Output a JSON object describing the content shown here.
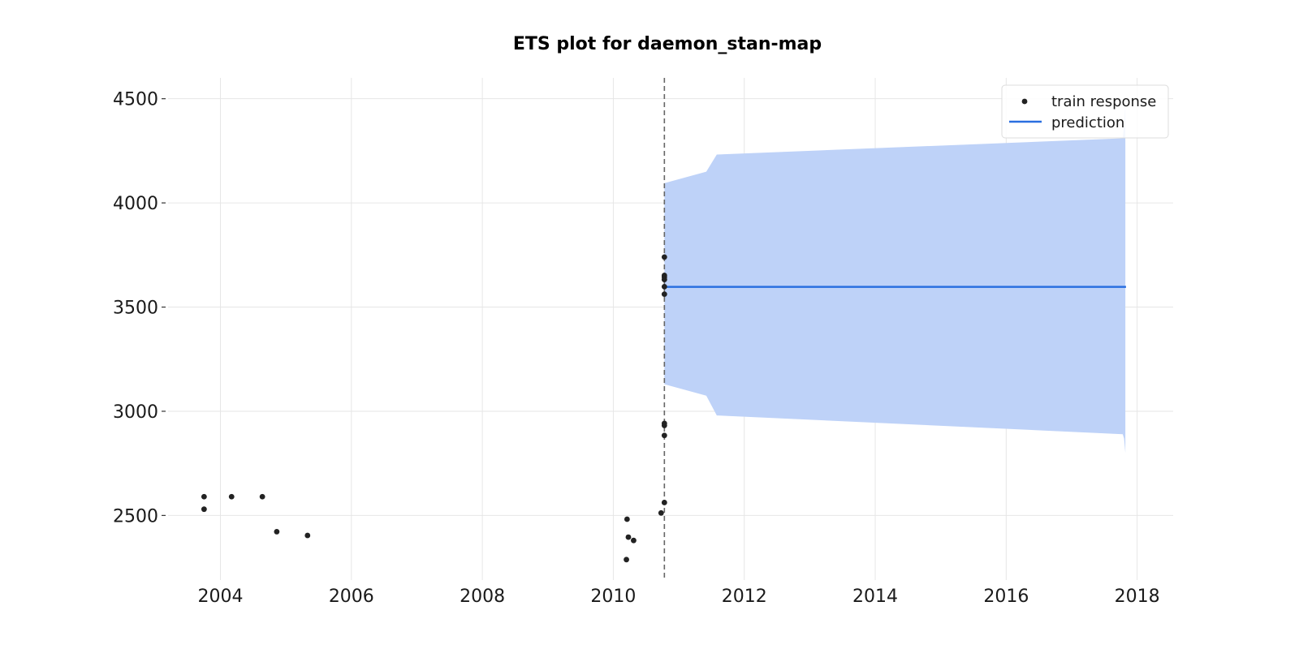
{
  "chart_data": {
    "type": "line",
    "title": "ETS plot for daemon_stan-map",
    "xlabel": "",
    "ylabel": "",
    "xlim": [
      2003.2,
      2018.55
    ],
    "ylim": [
      2190,
      4600
    ],
    "x_ticks": [
      2004,
      2006,
      2008,
      2010,
      2012,
      2014,
      2016,
      2018
    ],
    "x_tick_labels": [
      "2004",
      "2006",
      "2008",
      "2010",
      "2012",
      "2014",
      "2016",
      "2018"
    ],
    "y_ticks": [
      2500,
      3000,
      3500,
      4000,
      4500
    ],
    "y_tick_labels": [
      "2500",
      "3000",
      "3500",
      "4000",
      "4500"
    ],
    "grid": true,
    "legend_position": "top-right",
    "series": [
      {
        "name": "train response",
        "kind": "scatter",
        "color": "#222222",
        "points": [
          {
            "x": 2003.75,
            "y": 2590
          },
          {
            "x": 2003.75,
            "y": 2530
          },
          {
            "x": 2004.17,
            "y": 2590
          },
          {
            "x": 2004.64,
            "y": 2590
          },
          {
            "x": 2004.86,
            "y": 2422
          },
          {
            "x": 2005.33,
            "y": 2404
          },
          {
            "x": 2010.2,
            "y": 2288
          },
          {
            "x": 2010.21,
            "y": 2482
          },
          {
            "x": 2010.23,
            "y": 2396
          },
          {
            "x": 2010.31,
            "y": 2380
          },
          {
            "x": 2010.73,
            "y": 2512
          },
          {
            "x": 2010.78,
            "y": 2562
          },
          {
            "x": 2010.78,
            "y": 2884
          },
          {
            "x": 2010.78,
            "y": 2932
          },
          {
            "x": 2010.78,
            "y": 2942
          },
          {
            "x": 2010.78,
            "y": 3562
          },
          {
            "x": 2010.78,
            "y": 3598
          },
          {
            "x": 2010.78,
            "y": 3632
          },
          {
            "x": 2010.78,
            "y": 3644
          },
          {
            "x": 2010.78,
            "y": 3652
          },
          {
            "x": 2010.78,
            "y": 3740
          }
        ]
      },
      {
        "name": "prediction",
        "kind": "line",
        "color": "#2a6fe0",
        "x": [
          2010.78,
          2017.83
        ],
        "y": [
          3597,
          3597
        ]
      }
    ],
    "interval": {
      "color": "#bed2f8",
      "x": [
        2010.78,
        2011.42,
        2011.58,
        2017.78,
        2017.8,
        2017.82
      ],
      "upper": [
        4095,
        4150,
        4232,
        4310,
        4380,
        4470
      ],
      "lower": [
        3130,
        3075,
        2980,
        2890,
        2870,
        2800
      ]
    },
    "cutoff_x": 2010.78
  }
}
